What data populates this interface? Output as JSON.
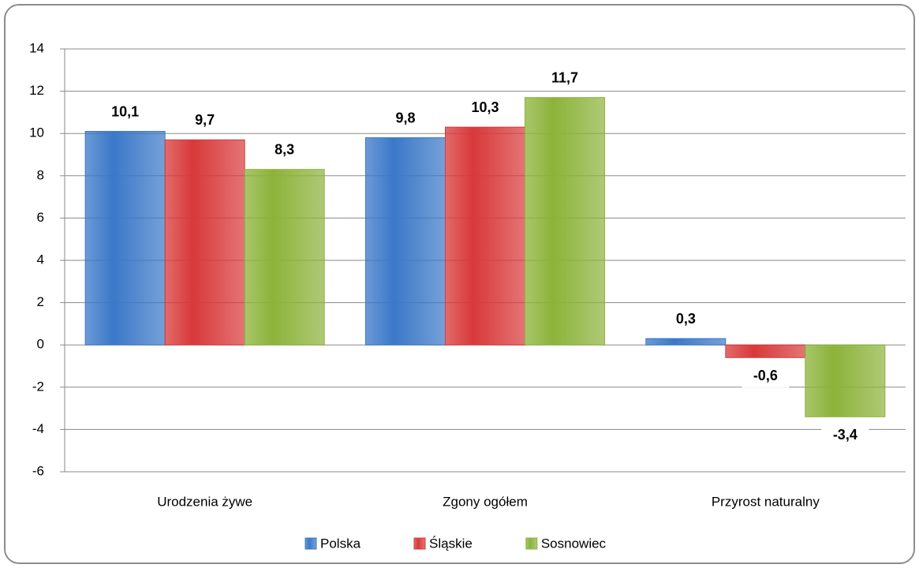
{
  "chart_data": {
    "type": "bar",
    "categories": [
      "Urodzenia żywe",
      "Zgony ogółem",
      "Przyrost naturalny"
    ],
    "series": [
      {
        "name": "Polska",
        "color": "#3b78c8",
        "values": [
          10.1,
          9.8,
          0.3
        ],
        "value_labels": [
          "10,1",
          "9,8",
          "0,3"
        ]
      },
      {
        "name": "Śląskie",
        "color": "#d8393a",
        "values": [
          9.7,
          10.3,
          -0.6
        ],
        "value_labels": [
          "9,7",
          "10,3",
          "-0,6"
        ]
      },
      {
        "name": "Sosnowiec",
        "color": "#8cb33a",
        "values": [
          8.3,
          11.7,
          -3.4
        ],
        "value_labels": [
          "8,3",
          "11,7",
          "-3,4"
        ]
      }
    ],
    "ylim": [
      -6,
      14
    ],
    "yticks": [
      -6,
      -4,
      -2,
      0,
      2,
      4,
      6,
      8,
      10,
      12,
      14
    ],
    "grid": true,
    "legend": "bottom"
  }
}
